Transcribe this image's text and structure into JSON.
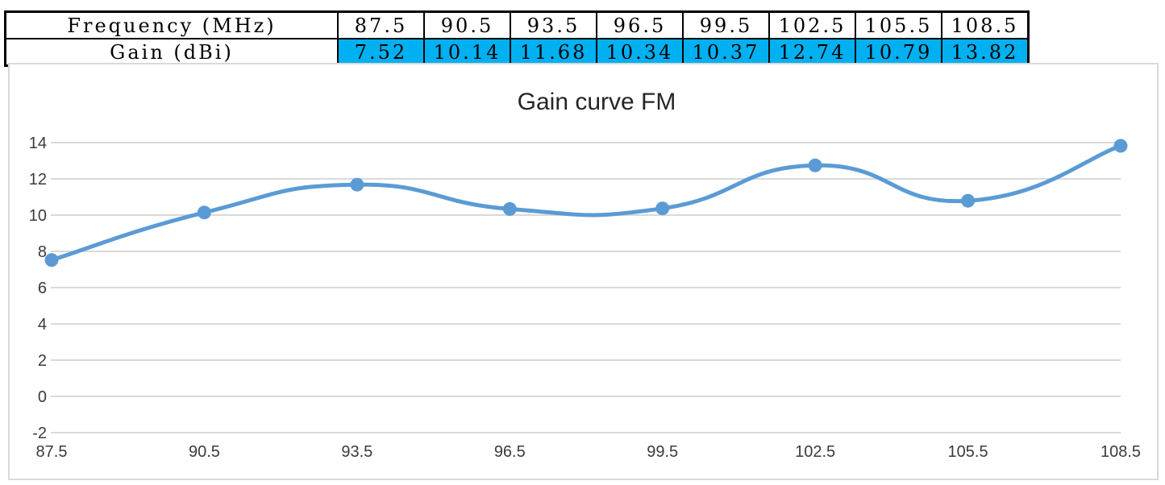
{
  "table": {
    "highlight_color": "#00B0F0",
    "rows": [
      {
        "label": "Frequency (MHz)",
        "highlight": false,
        "values": [
          "87.5",
          "90.5",
          "93.5",
          "96.5",
          "99.5",
          "102.5",
          "105.5",
          "108.5"
        ]
      },
      {
        "label": "Gain (dBi)",
        "highlight": true,
        "values": [
          "7.52",
          "10.14",
          "11.68",
          "10.34",
          "10.37",
          "12.74",
          "10.79",
          "13.82"
        ]
      }
    ]
  },
  "chart_data": {
    "type": "line",
    "title": "Gain curve FM",
    "x": [
      87.5,
      90.5,
      93.5,
      96.5,
      99.5,
      102.5,
      105.5,
      108.5
    ],
    "xtick_labels": [
      "87.5",
      "90.5",
      "93.5",
      "96.5",
      "99.5",
      "102.5",
      "105.5",
      "108.5"
    ],
    "series": [
      {
        "name": "Gain (dBi)",
        "values": [
          7.52,
          10.14,
          11.68,
          10.34,
          10.37,
          12.74,
          10.79,
          13.82
        ]
      }
    ],
    "xlabel": "",
    "ylabel": "",
    "ylim": [
      -2,
      14
    ],
    "ytick_step": 2,
    "ytick_labels": [
      "14",
      "12",
      "10",
      "8",
      "6",
      "4",
      "2",
      "0",
      "-2"
    ],
    "grid": true,
    "smooth": true,
    "marker": "circle",
    "legend": "none",
    "colors": {
      "line": "#5B9BD5",
      "gridline": "#D9D9D9",
      "chart_border": "#D9D9D9",
      "axis_label": "#3B3B3B",
      "title": "#262626"
    }
  }
}
